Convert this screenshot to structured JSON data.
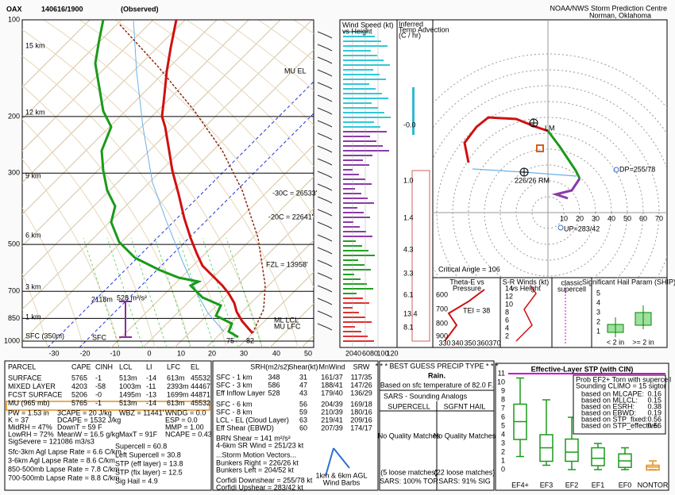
{
  "header": {
    "station": "OAX",
    "time": "140616/1900",
    "status": "(Observed)",
    "org": "NOAA/NWS Storm Prediction Centre",
    "location": "Norman, Oklahoma"
  },
  "skewt": {
    "pressure_labels": [
      "100",
      "200",
      "300",
      "500",
      "700",
      "850",
      "1000"
    ],
    "temp_labels": [
      "-30",
      "-20",
      "-10",
      "0",
      "10",
      "20",
      "30",
      "40",
      "50"
    ],
    "height_labels": [
      "15 km",
      "12 km",
      "9 km",
      "6 km",
      "3 km",
      "1 km",
      "SFC (350m)"
    ],
    "annotations": {
      "mu_el": "MU EL",
      "t30": "-30C = 26533'",
      "t20": "-20C = 22641'",
      "fzl": "FZL = 13958'",
      "ml_lcl": "ML LCL",
      "mu_lfc": "MU LFC",
      "eff_depth": "2118m",
      "eff_srh": "528 m²/s²",
      "sfc": "SFC",
      "dew_f": "75",
      "temp_f": "82"
    }
  },
  "wind_panel": {
    "title": [
      "Wind Speed (kt)",
      "vs Height"
    ],
    "axis": [
      "20",
      "40",
      "60",
      "80",
      "100",
      "120"
    ]
  },
  "temp_advection": {
    "title": [
      "Inferred",
      "Temp Advection",
      "(C / hr)"
    ],
    "values": [
      "-0.0",
      "1.0",
      "1.4",
      "4.3",
      "3.3",
      "6.1",
      "13.4",
      "8.1"
    ]
  },
  "hodograph": {
    "rings": [
      "10",
      "20",
      "30",
      "40",
      "50",
      "60",
      "70"
    ],
    "critical_angle": "Critical Angle = 106",
    "dp": "DP=255/78",
    "up": "UP=283/42",
    "rm": "226/26 RM",
    "lm": "LM"
  },
  "theta_e": {
    "title": [
      "Theta-E vs",
      "Pressure"
    ],
    "tei": "TEI = 38",
    "plabels": [
      "600",
      "700",
      "800",
      "900"
    ],
    "tlabels": [
      "330",
      "340",
      "350",
      "360",
      "370"
    ]
  },
  "sr_winds": {
    "title": [
      "S-R Winds (kt)",
      "vs Height"
    ],
    "hlabels": [
      "14",
      "12",
      "10",
      "8",
      "6",
      "4",
      "2"
    ]
  },
  "storm_type": [
    "classic",
    "supercell"
  ],
  "ship": {
    "title": "Significant Hail Param (SHIP)",
    "ylabels": [
      "5",
      "4",
      "3",
      "2",
      "1"
    ],
    "xlabels": [
      "< 2 in",
      ">= 2 in"
    ]
  },
  "parcels": {
    "headers": [
      "PARCEL",
      "CAPE",
      "CINH",
      "LCL",
      "LI",
      "LFC",
      "EL"
    ],
    "rows": [
      [
        "SURFACE",
        "5765",
        "-1",
        "513m",
        "-14",
        "613m",
        "45532'"
      ],
      [
        "MIXED LAYER",
        "4203",
        "-58",
        "1003m",
        "-11",
        "2393m",
        "44467'"
      ],
      [
        "FCST SURFACE",
        "5206",
        "-0",
        "1495m",
        "-13",
        "1699m",
        "44871'"
      ],
      [
        "MU (965 mb)",
        "5765",
        "-1",
        "513m",
        "-14",
        "613m",
        "45532'"
      ]
    ]
  },
  "indices": [
    "PW = 1.53 in",
    "3CAPE = 20 J/kg",
    "WBZ = 11441'",
    "WNDG = 0.0",
    "K = 37",
    "DCAPE = 1532 J/kg",
    "ESP = 0.0",
    "MidRH = 47%",
    "DownT = 59 F",
    "MMP = 1.00",
    "LowRH = 72%",
    "MeanW = 16.5 g/kg",
    "MaxT = 91F",
    "NCAPE = 0.43",
    "SigSevere = 121086 m3/s3"
  ],
  "lapse_rates": [
    "Sfc-3km Agl Lapse Rate = 6.6 C/km",
    "3-6km Agl Lapse Rate = 8.6 C/km",
    "850-500mb Lapse Rate = 7.8 C/km",
    "700-500mb Lapse Rate = 8.8 C/km"
  ],
  "composites": [
    "Supercell = 60.8",
    "Left Supercell = 30.8",
    "STP (eff layer) = 13.8",
    "STP (fix layer) = 12.5",
    "Sig Hail = 4.9"
  ],
  "kinematics": {
    "headers": [
      "SRH(m2/s2)",
      "Shear(kt)",
      "MnWind",
      "SRW"
    ],
    "rows": [
      {
        "label": "SFC - 1 km",
        "srh": "348",
        "shear": "31",
        "mnwind": "161/37",
        "srw": "117/35"
      },
      {
        "label": "SFC - 3 km",
        "srh": "586",
        "shear": "47",
        "mnwind": "188/41",
        "srw": "147/26"
      },
      {
        "label": "Eff Inflow Layer",
        "srh": "528",
        "shear": "43",
        "mnwind": "179/40",
        "srw": "136/29"
      },
      {
        "label": "SFC - 6 km",
        "shear": "56",
        "mnwind": "204/39",
        "srw": "169/18"
      },
      {
        "label": "SFC - 8 km",
        "shear": "59",
        "mnwind": "210/39",
        "srw": "180/16"
      },
      {
        "label": "LCL - EL (Cloud Layer)",
        "shear": "63",
        "mnwind": "219/41",
        "srw": "209/16"
      },
      {
        "label": "Eff Shear (EBWD)",
        "shear": "60",
        "mnwind": "207/39",
        "srw": "174/17"
      }
    ],
    "brn": "BRN Shear = 141 m²/s²",
    "sr_wind": "4-6km SR Wind = 251/23 kt"
  },
  "storm_motion": {
    "title": "...Storm Motion Vectors...",
    "lines": [
      "Bunkers Right = 226/26 kt",
      "Bunkers Left = 204/52 kt",
      "Corfidi Downshear = 255/78 kt",
      "Corfidi Upshear = 283/42 kt"
    ]
  },
  "wind_barb_legend": [
    "1km & 6km AGL",
    "Wind Barbs"
  ],
  "precip": {
    "title": "* * * BEST GUESS PRECIP TYPE * * *",
    "type": "Rain.",
    "basis": "Based on sfc temperature of 82.0 F."
  },
  "sars": {
    "title": "SARS - Sounding Analogs",
    "headers": [
      "SUPERCELL",
      "SGFNT HAIL"
    ],
    "matches": [
      "No Quality Matches",
      "No Quality Matches"
    ],
    "loose": [
      "(5 loose matches)",
      "(22 loose matches)"
    ],
    "results": [
      "SARS: 100% TOR",
      "SARS: 91% SIG"
    ]
  },
  "stp": {
    "title": "Effective-Layer STP (with CIN)",
    "ylabels": [
      "0",
      "1",
      "2",
      "3",
      "4",
      "5",
      "6",
      "7",
      "8",
      "9",
      "10",
      "11"
    ],
    "xlabels": [
      "EF4+",
      "EF3",
      "EF2",
      "EF1",
      "EF0",
      "NONTOR"
    ],
    "info": [
      "Prob EF2+ Torn with supercell",
      "Sounding CLIMO = 15 sigtor"
    ],
    "bases": [
      [
        "based on MLCAPE:",
        "0.16"
      ],
      [
        "based on MLLCL:",
        "0.15"
      ],
      [
        "based on ESRH:",
        "0.38"
      ],
      [
        "based on EBWD:",
        "0.19"
      ],
      [
        "based on STP_fixed:",
        "0.56"
      ],
      [
        "based on STP_effective:",
        "0.56"
      ]
    ]
  }
}
